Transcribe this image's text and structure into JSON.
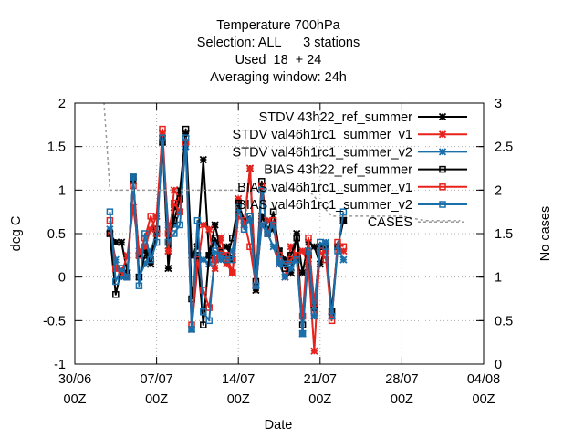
{
  "title": {
    "lines": [
      "Temperature 700hPa",
      "Selection: ALL      3 stations",
      "Used  18  + 24",
      "Averaging window: 24h"
    ]
  },
  "chart_data": {
    "type": "line",
    "title": "Temperature 700hPa",
    "xlabel": "Date",
    "ylabel": "deg C",
    "y2label": "No cases",
    "xlim": [
      "2023-06-30 00:00",
      "2023-08-04 00:00"
    ],
    "ylim": [
      -1,
      2
    ],
    "y2lim": [
      0,
      3
    ],
    "x_ticks": [
      {
        "x": 0,
        "label": "30/06",
        "sub": "00Z"
      },
      {
        "x": 7,
        "label": "07/07",
        "sub": "00Z"
      },
      {
        "x": 14,
        "label": "14/07",
        "sub": "00Z"
      },
      {
        "x": 21,
        "label": "21/07",
        "sub": "00Z"
      },
      {
        "x": 28,
        "label": "28/07",
        "sub": "00Z"
      },
      {
        "x": 35,
        "label": "04/08",
        "sub": "00Z"
      }
    ],
    "y_ticks": [
      -1,
      -0.5,
      0,
      0.5,
      1,
      1.5,
      2
    ],
    "y2_ticks": [
      0,
      0.5,
      1,
      1.5,
      2,
      2.5,
      3
    ],
    "grid": true,
    "legend_position": "top-right",
    "x_days": [
      3,
      3.5,
      4,
      4.5,
      5,
      5.5,
      6,
      6.5,
      7,
      7.5,
      8,
      8.5,
      9,
      9.5,
      10,
      10.5,
      11,
      11.5,
      12,
      12.5,
      13,
      13.5,
      14,
      14.5,
      15,
      15.5,
      16,
      16.5,
      17,
      17.5,
      18,
      18.5,
      19,
      19.5,
      20,
      20.5,
      21,
      21.5,
      22,
      22.5,
      23
    ],
    "series": [
      {
        "name": "STDV 43h22_ref_summer",
        "marker": "x",
        "color": "#000000",
        "axis": "y1",
        "values": [
          0.5,
          0.4,
          0.4,
          0.05,
          1.1,
          0.25,
          0.3,
          0.15,
          0.5,
          1.6,
          0.1,
          0.8,
          1.0,
          1.65,
          0.25,
          0.35,
          1.35,
          0.25,
          0.6,
          0.3,
          0.35,
          0.2,
          0.85,
          0.6,
          1.25,
          -0.15,
          0.7,
          0.55,
          0.55,
          0.3,
          0.2,
          0.05,
          0.5,
          0.05,
          0.4,
          0.35,
          0.15,
          0.35,
          -0.45,
          0.35,
          0.65
        ]
      },
      {
        "name": "STDV val46h1rc1_summer_v1",
        "marker": "x",
        "color": "#e8221c",
        "axis": "y1",
        "values": [
          0.5,
          0.1,
          0.05,
          0.25,
          0.8,
          0.3,
          0.35,
          0.55,
          0.7,
          1.65,
          0.3,
          1.0,
          0.9,
          1.55,
          -0.6,
          0.1,
          0.6,
          0.55,
          0.1,
          0.45,
          0.15,
          0.05,
          0.9,
          0.6,
          1.25,
          -0.1,
          0.6,
          0.65,
          0.6,
          0.15,
          0.0,
          0.35,
          0.25,
          0.3,
          0.15,
          -0.85,
          0.35,
          0.3,
          -0.45,
          0.35,
          0.3
        ]
      },
      {
        "name": "STDV val46h1rc1_summer_v2",
        "marker": "x",
        "color": "#1a6faa",
        "axis": "y1",
        "values": [
          0.55,
          0.2,
          0.0,
          0.0,
          1.15,
          0.0,
          0.15,
          0.3,
          0.5,
          1.55,
          0.6,
          0.6,
          0.75,
          1.5,
          -0.6,
          0.25,
          0.2,
          0.15,
          0.4,
          0.2,
          0.25,
          0.3,
          0.75,
          0.65,
          0.65,
          -0.1,
          0.6,
          0.5,
          0.35,
          0.15,
          0.0,
          0.1,
          0.2,
          -0.65,
          0.25,
          -0.45,
          0.35,
          0.4,
          -0.4,
          0.35,
          0.2
        ]
      },
      {
        "name": "BIAS 43h22_ref_summer",
        "marker": "square",
        "color": "#000000",
        "axis": "y1",
        "values": [
          0.5,
          -0.2,
          0.1,
          0.0,
          1.15,
          0.0,
          0.25,
          0.2,
          0.55,
          1.55,
          0.4,
          0.65,
          0.9,
          1.7,
          -0.25,
          0.25,
          -0.55,
          0.25,
          0.45,
          0.3,
          0.2,
          0.45,
          0.85,
          0.65,
          0.7,
          -0.05,
          1.1,
          0.5,
          0.75,
          0.3,
          0.1,
          0.25,
          0.45,
          -0.55,
          0.25,
          -0.35,
          0.35,
          0.35,
          -0.4,
          0.35,
          0.65
        ]
      },
      {
        "name": "BIAS val46h1rc1_summer_v1",
        "marker": "square",
        "color": "#e8221c",
        "axis": "y1",
        "values": [
          0.65,
          0.1,
          0.05,
          0.0,
          1.05,
          0.25,
          0.45,
          0.7,
          0.5,
          1.7,
          0.5,
          0.85,
          0.75,
          1.55,
          -0.55,
          0.2,
          -0.15,
          -0.35,
          0.2,
          0.3,
          0.25,
          0.05,
          0.7,
          0.65,
          0.35,
          -0.1,
          1.05,
          0.5,
          0.65,
          0.25,
          0.15,
          0.2,
          0.25,
          -0.45,
          0.45,
          -0.3,
          0.3,
          0.2,
          -0.5,
          0.4,
          0.35
        ]
      },
      {
        "name": "BIAS val46h1rc1_summer_v2",
        "marker": "square",
        "color": "#1a6faa",
        "axis": "y1",
        "values": [
          0.75,
          -0.05,
          0.1,
          0.0,
          1.15,
          -0.1,
          0.5,
          0.2,
          0.4,
          1.6,
          0.4,
          0.5,
          0.6,
          1.6,
          -0.6,
          0.65,
          -0.4,
          -0.5,
          0.3,
          0.25,
          0.2,
          0.2,
          0.8,
          0.55,
          0.7,
          -0.1,
          1.0,
          0.5,
          0.6,
          0.2,
          0.15,
          0.15,
          0.2,
          -0.65,
          0.3,
          -0.4,
          0.4,
          0.35,
          -0.45,
          0.3,
          0.75
        ]
      },
      {
        "name": "CASES",
        "marker": "none",
        "color": "#999999",
        "dashed": true,
        "axis": "y2",
        "x": [
          0,
          2.5,
          3,
          8,
          11,
          14,
          17,
          20,
          22,
          24,
          26,
          28,
          30,
          32,
          33
        ],
        "values": [
          3.3,
          3.0,
          2.0,
          2.0,
          2.0,
          2.0,
          2.0,
          2.0,
          1.7,
          1.7,
          1.7,
          1.7,
          1.65,
          1.65,
          1.65
        ]
      }
    ]
  }
}
